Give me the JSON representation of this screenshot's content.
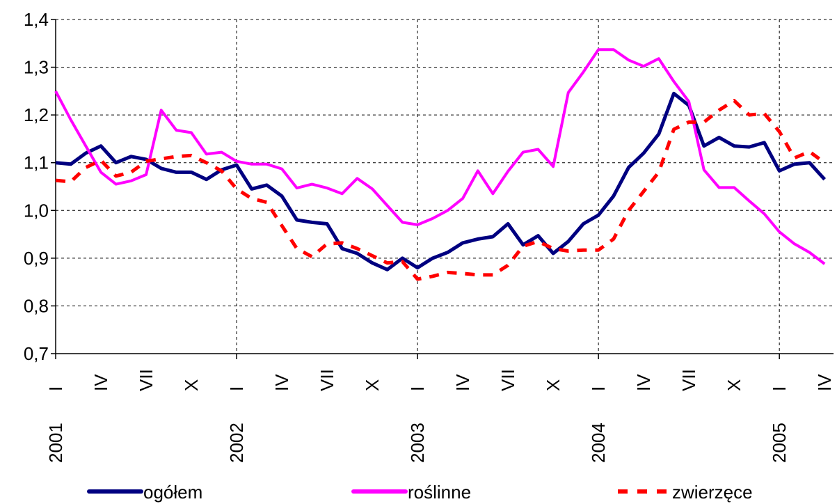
{
  "chart_data": {
    "type": "line",
    "categories": [
      "I",
      null,
      null,
      "IV",
      null,
      null,
      "VII",
      null,
      null,
      "X",
      null,
      null,
      "I",
      null,
      null,
      "IV",
      null,
      null,
      "VII",
      null,
      null,
      "X",
      null,
      null,
      "I",
      null,
      null,
      "IV",
      null,
      null,
      "VII",
      null,
      null,
      "X",
      null,
      null,
      "I",
      null,
      null,
      "IV",
      null,
      null,
      "VII",
      null,
      null,
      "X",
      null,
      null,
      "I",
      null,
      null,
      "IV"
    ],
    "category_groups": [
      {
        "label": "2001",
        "start": 0
      },
      {
        "label": "2002",
        "start": 12
      },
      {
        "label": "2003",
        "start": 24
      },
      {
        "label": "2004",
        "start": 36
      },
      {
        "label": "2005",
        "start": 48
      }
    ],
    "series": [
      {
        "name": "ogółem",
        "color": "#000080",
        "dash": "solid",
        "values": [
          1.1,
          1.097,
          1.12,
          1.135,
          1.1,
          1.113,
          1.107,
          1.088,
          1.08,
          1.08,
          1.065,
          1.085,
          1.095,
          1.045,
          1.053,
          1.03,
          0.98,
          0.975,
          0.972,
          0.92,
          0.91,
          0.89,
          0.876,
          0.9,
          0.88,
          0.9,
          0.912,
          0.932,
          0.94,
          0.945,
          0.972,
          0.928,
          0.947,
          0.91,
          0.935,
          0.972,
          0.99,
          1.03,
          1.09,
          1.12,
          1.16,
          1.245,
          1.22,
          1.135,
          1.153,
          1.135,
          1.133,
          1.142,
          1.083,
          1.097,
          1.1,
          1.065
        ]
      },
      {
        "name": "roślinne",
        "color": "#ff00ff",
        "dash": "solid",
        "values": [
          1.25,
          1.19,
          1.135,
          1.08,
          1.055,
          1.062,
          1.075,
          1.21,
          1.168,
          1.163,
          1.118,
          1.122,
          1.103,
          1.097,
          1.097,
          1.087,
          1.047,
          1.055,
          1.047,
          1.035,
          1.067,
          1.045,
          1.01,
          0.975,
          0.97,
          0.983,
          1.0,
          1.025,
          1.083,
          1.035,
          1.082,
          1.122,
          1.128,
          1.092,
          1.247,
          1.29,
          1.337,
          1.337,
          1.315,
          1.302,
          1.318,
          1.27,
          1.228,
          1.085,
          1.048,
          1.048,
          1.02,
          0.993,
          0.955,
          0.93,
          0.912,
          0.888
        ]
      },
      {
        "name": "zwierzęce",
        "color": "#ff0000",
        "dash": "dashed",
        "values": [
          1.063,
          1.06,
          1.09,
          1.105,
          1.072,
          1.08,
          1.103,
          1.108,
          1.113,
          1.115,
          1.1,
          1.083,
          1.045,
          1.025,
          1.017,
          0.968,
          0.92,
          0.903,
          0.93,
          0.932,
          0.92,
          0.905,
          0.89,
          0.893,
          0.856,
          0.862,
          0.87,
          0.868,
          0.865,
          0.865,
          0.885,
          0.925,
          0.935,
          0.92,
          0.915,
          0.917,
          0.917,
          0.94,
          1.0,
          1.04,
          1.08,
          1.17,
          1.185,
          1.185,
          1.21,
          1.23,
          1.2,
          1.203,
          1.165,
          1.11,
          1.123,
          1.1
        ]
      }
    ],
    "ylim": [
      0.7,
      1.4
    ],
    "yticks": [
      {
        "value": 0.7,
        "label": "0,7"
      },
      {
        "value": 0.8,
        "label": "0,8"
      },
      {
        "value": 0.9,
        "label": "0,9"
      },
      {
        "value": 1.0,
        "label": "1,0"
      },
      {
        "value": 1.1,
        "label": "1,1"
      },
      {
        "value": 1.2,
        "label": "1,2"
      },
      {
        "value": 1.3,
        "label": "1,3"
      },
      {
        "value": 1.4,
        "label": "1,4"
      }
    ],
    "grid": true,
    "legend": "bottom"
  }
}
